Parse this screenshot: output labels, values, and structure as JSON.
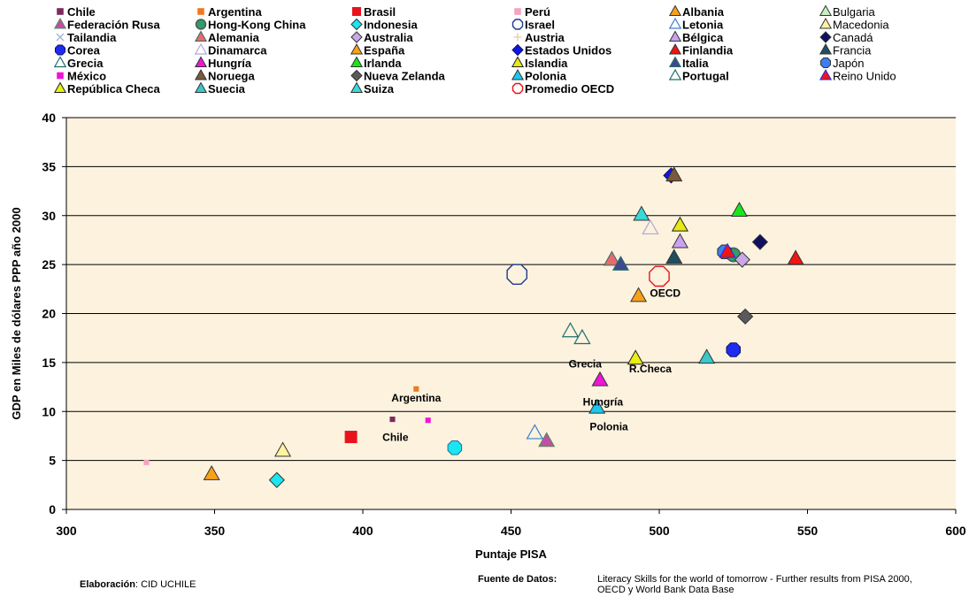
{
  "chart_data": {
    "type": "scatter",
    "title": "",
    "xlabel": "Puntaje PISA",
    "ylabel": "GDP en Miles de dólares PPP año 2000",
    "xlim": [
      300,
      600
    ],
    "ylim": [
      0,
      40
    ],
    "xticks": [
      300,
      350,
      400,
      450,
      500,
      550,
      600
    ],
    "yticks": [
      0,
      5,
      10,
      15,
      20,
      25,
      30,
      35,
      40
    ],
    "grid": "horizontal",
    "legend_position": "top",
    "plot_background": "#FCF2DE",
    "series": [
      {
        "name": "Chile",
        "marker": "square-sm",
        "color": "#7B2A5E",
        "bold": true,
        "x": 410,
        "y": 9.2
      },
      {
        "name": "Argentina",
        "marker": "square-sm",
        "color": "#F07822",
        "bold": true,
        "x": 418,
        "y": 12.3
      },
      {
        "name": "Brasil",
        "marker": "square",
        "color": "#E8141B",
        "bold": true,
        "x": 396,
        "y": 7.4
      },
      {
        "name": "Perú",
        "marker": "square-sm",
        "color": "#F4A3C0",
        "bold": true,
        "x": 327,
        "y": 4.8
      },
      {
        "name": "Albania",
        "marker": "triangle",
        "color": "#F7A11A",
        "bold": true,
        "x": 349,
        "y": 3.6
      },
      {
        "name": "Bulgaria",
        "marker": "triangle",
        "color": "#C6EFC0",
        "bold": false,
        "x": null,
        "y": null
      },
      {
        "name": "Federación Rusa",
        "marker": "triangle",
        "color": "#C04FA8",
        "edge": "#558855",
        "bold": true,
        "x": 462,
        "y": 7.0
      },
      {
        "name": "Hong-Kong China",
        "marker": "circle",
        "color": "#2E9E6A",
        "edge": "#555555",
        "bold": true,
        "x": 525,
        "y": 26.0
      },
      {
        "name": "Indonesia",
        "marker": "diamond",
        "color": "#19E6F0",
        "bold": true,
        "x": 371,
        "y": 3.0
      },
      {
        "name": "Israel",
        "marker": "octagon-open",
        "color": "#1E3C8C",
        "bold": true,
        "x": 452,
        "y": 24.0
      },
      {
        "name": "Letonia",
        "marker": "triangle-open",
        "color": "#3A7FD0",
        "bold": true,
        "x": 458,
        "y": 7.8
      },
      {
        "name": "Macedonia",
        "marker": "triangle",
        "color": "#FFF3A0",
        "bold": false,
        "x": 373,
        "y": 6.0
      },
      {
        "name": "Tailandia",
        "marker": "x",
        "color": "#A0B4D8",
        "bold": true,
        "x": null,
        "y": null
      },
      {
        "name": "Alemania",
        "marker": "triangle",
        "color": "#E86A6A",
        "edge": "#2E6B6B",
        "bold": true,
        "x": 484,
        "y": 25.5
      },
      {
        "name": "Australia",
        "marker": "diamond",
        "color": "#C9A8E8",
        "bold": true,
        "x": 528,
        "y": 25.5
      },
      {
        "name": "Austria",
        "marker": "plus",
        "color": "#E8C8A8",
        "bold": true,
        "x": null,
        "y": null
      },
      {
        "name": "Bélgica",
        "marker": "triangle",
        "color": "#C9A2F0",
        "bold": true,
        "x": 507,
        "y": 27.3
      },
      {
        "name": "Canadá",
        "marker": "diamond",
        "color": "#101060",
        "bold": false,
        "x": 534,
        "y": 27.3
      },
      {
        "name": "Corea",
        "marker": "octagon",
        "color": "#1E2CF0",
        "edge": "#101060",
        "bold": true,
        "x": 525,
        "y": 16.3
      },
      {
        "name": "Dinamarca",
        "marker": "triangle-open",
        "color": "#B0A8D8",
        "bold": true,
        "x": 497,
        "y": 28.7
      },
      {
        "name": "España",
        "marker": "triangle",
        "color": "#F7A11A",
        "bold": true,
        "x": 493,
        "y": 21.8
      },
      {
        "name": "Estados Unidos",
        "marker": "diamond",
        "color": "#0C16E8",
        "edge": "#101060",
        "bold": true,
        "x": 504,
        "y": 34.1
      },
      {
        "name": "Finlandia",
        "marker": "triangle",
        "color": "#F01414",
        "bold": true,
        "x": 546,
        "y": 25.6
      },
      {
        "name": "Francia",
        "marker": "triangle",
        "color": "#1F4F5F",
        "bold": false,
        "x": 505,
        "y": 25.7
      },
      {
        "name": "Grecia",
        "marker": "triangle-open",
        "color": "#1E6E6E",
        "bold": true,
        "x": 474,
        "y": 17.5
      },
      {
        "name": "Hungría",
        "marker": "triangle",
        "color": "#F014D8",
        "bold": true,
        "x": 480,
        "y": 13.2
      },
      {
        "name": "Irlanda",
        "marker": "triangle",
        "color": "#19E619",
        "bold": true,
        "x": 527,
        "y": 30.5
      },
      {
        "name": "Islandia",
        "marker": "triangle",
        "color": "#E8E814",
        "edge": "#202020",
        "bold": true,
        "x": 507,
        "y": 29.0
      },
      {
        "name": "Italia",
        "marker": "triangle",
        "color": "#3A4C8C",
        "edge": "#2E6B6B",
        "bold": true,
        "x": 487,
        "y": 25.0
      },
      {
        "name": "Japón",
        "marker": "octagon",
        "color": "#3A7FF0",
        "bold": false,
        "x": 522,
        "y": 26.3
      },
      {
        "name": "México",
        "marker": "square-sm",
        "color": "#F014D8",
        "bold": true,
        "x": 422,
        "y": 9.1
      },
      {
        "name": "Noruega",
        "marker": "triangle",
        "color": "#7A5A3A",
        "bold": true,
        "x": 505,
        "y": 34.1
      },
      {
        "name": "Nueva Zelanda",
        "marker": "diamond",
        "color": "#5A5A5A",
        "bold": true,
        "x": 529,
        "y": 19.7
      },
      {
        "name": "Polonia",
        "marker": "triangle",
        "color": "#19C8F0",
        "bold": true,
        "x": 479,
        "y": 10.4
      },
      {
        "name": "Portugal",
        "marker": "triangle-open",
        "color": "#1E6E6E",
        "bold": true,
        "x": 470,
        "y": 18.2
      },
      {
        "name": "Reino Unido",
        "marker": "triangle",
        "color": "#F01414",
        "edge": "#1E2CF0",
        "bold": false,
        "x": 523,
        "y": 26.3
      },
      {
        "name": "República Checa",
        "marker": "triangle",
        "color": "#E8F014",
        "edge": "#202020",
        "bold": true,
        "x": 492,
        "y": 15.4
      },
      {
        "name": "Suecia",
        "marker": "triangle",
        "color": "#3AC8C8",
        "bold": true,
        "x": 516,
        "y": 15.5
      },
      {
        "name": "Suiza",
        "marker": "triangle",
        "color": "#3AD8D8",
        "bold": true,
        "x": 494,
        "y": 30.1
      },
      {
        "name": "Promedio OECD",
        "marker": "octagon-open",
        "color": "#E8141B",
        "bold": true,
        "x": 500,
        "y": 23.8
      },
      {
        "name": "",
        "marker": "octagon",
        "color": "#19E6F0",
        "edge": "#1E6E9E",
        "x": 431,
        "y": 6.3
      }
    ],
    "annotations": [
      {
        "text": "Argentina",
        "x": 418,
        "y": 11.0
      },
      {
        "text": "Chile",
        "x": 411,
        "y": 7.0
      },
      {
        "text": "OECD",
        "x": 502,
        "y": 21.7
      },
      {
        "text": "Grecia",
        "x": 475,
        "y": 14.5
      },
      {
        "text": "R.Checa",
        "x": 497,
        "y": 14.0
      },
      {
        "text": "Hungría",
        "x": 481,
        "y": 10.6
      },
      {
        "text": "Polonia",
        "x": 483,
        "y": 8.1
      }
    ]
  },
  "footer": {
    "credit_label": "Elaboración",
    "credit_value": ": CID UCHILE",
    "source_label": "Fuente de Datos:",
    "source_line1": "Literacy Skills for the world of tomorrow - Further results from PISA  2000,",
    "source_line2": "OECD y World Bank Data Base"
  }
}
